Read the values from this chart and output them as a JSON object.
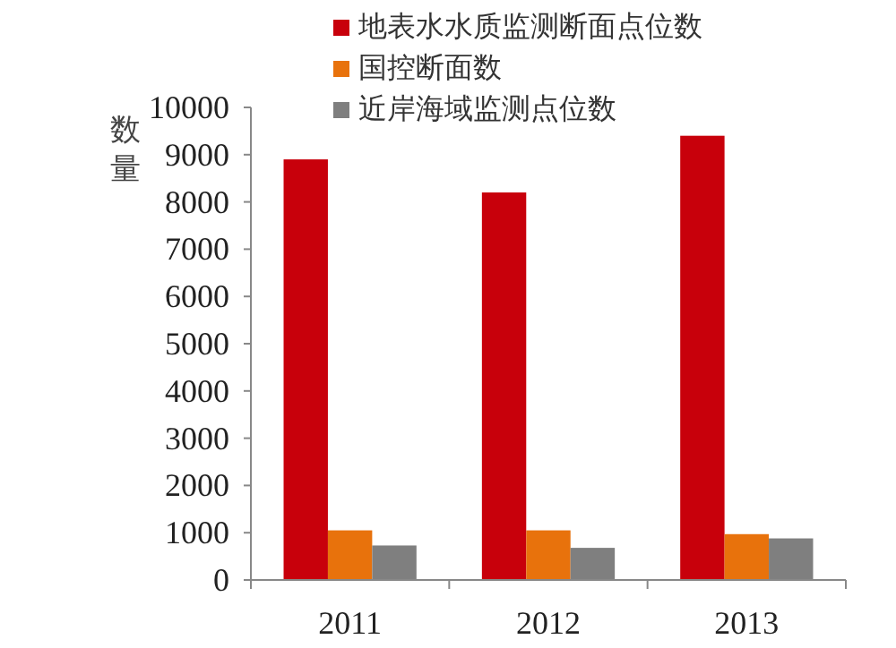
{
  "chart_data": {
    "type": "bar",
    "ylabel": "数量",
    "categories": [
      "2011",
      "2012",
      "2013"
    ],
    "series": [
      {
        "name": "地表水水质监测断面点位数",
        "color": "#c8000b",
        "values": [
          8900,
          8200,
          9400
        ]
      },
      {
        "name": "国控断面数",
        "color": "#e8720c",
        "values": [
          1050,
          1050,
          970
        ]
      },
      {
        "name": "近岸海域监测点位数",
        "color": "#7f7f7f",
        "values": [
          730,
          680,
          880
        ]
      }
    ],
    "ylim": [
      0,
      10000
    ],
    "yticks": [
      0,
      1000,
      2000,
      3000,
      4000,
      5000,
      6000,
      7000,
      8000,
      9000,
      10000
    ],
    "grid": false,
    "legend": "top"
  }
}
